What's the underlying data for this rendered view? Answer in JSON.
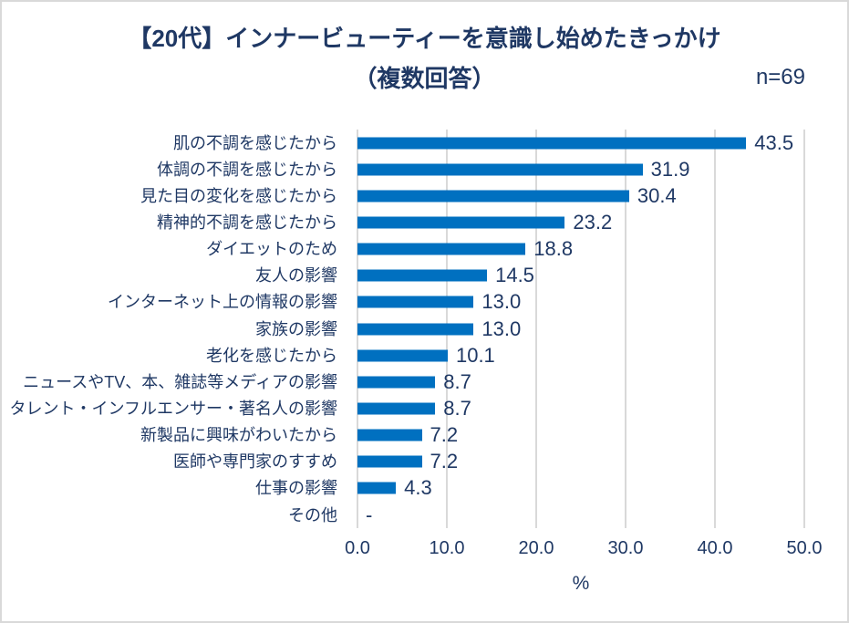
{
  "chart_data": {
    "type": "bar",
    "orientation": "horizontal",
    "title_line1": "【20代】インナービューティーを意識し始めたきっかけ",
    "title_line2": "（複数回答）",
    "n_label": "n=69",
    "categories": [
      "肌の不調を感じたから",
      "体調の不調を感じたから",
      "見た目の変化を感じたから",
      "精神的不調を感じたから",
      "ダイエットのため",
      "友人の影響",
      "インターネット上の情報の影響",
      "家族の影響",
      "老化を感じたから",
      "ニュースやTV、本、雑誌等メディアの影響",
      "タレント・インフルエンサー・著名人の影響",
      "新製品に興味がわいたから",
      "医師や専門家のすすめ",
      "仕事の影響",
      "その他"
    ],
    "values": [
      43.5,
      31.9,
      30.4,
      23.2,
      18.8,
      14.5,
      13.0,
      13.0,
      10.1,
      8.7,
      8.7,
      7.2,
      7.2,
      4.3,
      null
    ],
    "value_labels": [
      "43.5",
      "31.9",
      "30.4",
      "23.2",
      "18.8",
      "14.5",
      "13.0",
      "13.0",
      "10.1",
      "8.7",
      "8.7",
      "7.2",
      "7.2",
      "4.3",
      "-"
    ],
    "xlabel": "%",
    "xlim": [
      0,
      50
    ],
    "x_ticks": [
      "0.0",
      "10.0",
      "20.0",
      "30.0",
      "40.0",
      "50.0"
    ],
    "grid": true,
    "legend": "none",
    "colors": {
      "bar": "#0070C0",
      "text": "#1F3864",
      "gridline": "#D9D9D9",
      "border": "#D9D9D9",
      "background": "#FFFFFF"
    }
  }
}
